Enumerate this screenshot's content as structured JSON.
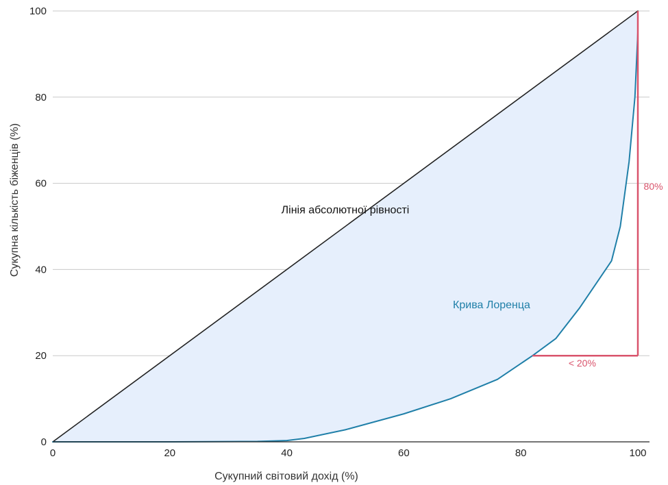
{
  "chart_data": {
    "type": "line",
    "xlabel": "Сукупний світовий дохід (%)",
    "ylabel": "Сукупна кількість біженців (%)",
    "xlim": [
      0,
      100
    ],
    "ylim": [
      0,
      100
    ],
    "x_ticks": [
      0,
      20,
      40,
      60,
      80,
      100
    ],
    "y_ticks": [
      0,
      20,
      40,
      60,
      80,
      100
    ],
    "x_tick_labels": [
      "0",
      "20",
      "40",
      "60",
      "80",
      "100"
    ],
    "y_tick_labels": [
      "0",
      "20",
      "40",
      "60",
      "80",
      "100"
    ],
    "grid": "horizontal",
    "series": [
      {
        "label": "Лінія абсолютної рівності",
        "color": "#222222",
        "x": [
          0,
          100
        ],
        "y": [
          0,
          100
        ]
      },
      {
        "label": "Крива Лоренца",
        "color": "#1f7fa8",
        "x": [
          0,
          20,
          35,
          40,
          43,
          50,
          60,
          68,
          76,
          82,
          86,
          90,
          95.5,
          97,
          98.5,
          99.5,
          100
        ],
        "y": [
          0,
          0,
          0.1,
          0.3,
          0.8,
          2.8,
          6.5,
          10,
          14.5,
          20,
          24,
          31,
          42,
          50,
          65,
          80,
          95
        ]
      }
    ],
    "fill_color": "#e6effc",
    "annotations": [
      {
        "text": "Лінія абсолютної рівності",
        "x": 50,
        "y": 53,
        "color": "#111111"
      },
      {
        "text": "Крива Лоренца",
        "x": 75,
        "y": 31,
        "color": "#1f7fa8"
      },
      {
        "text": "80%",
        "x": 101,
        "y": 58.5,
        "color": "#d9536b"
      },
      {
        "text": "< 20%",
        "x": 90.5,
        "y": 17.5,
        "color": "#d9536b"
      }
    ],
    "highlight": {
      "color": "#d9536b",
      "vertical": {
        "x": 100,
        "y_from": 20,
        "y_to": 100
      },
      "horizontal": {
        "y": 20,
        "x_from": 82,
        "x_to": 100
      }
    }
  }
}
